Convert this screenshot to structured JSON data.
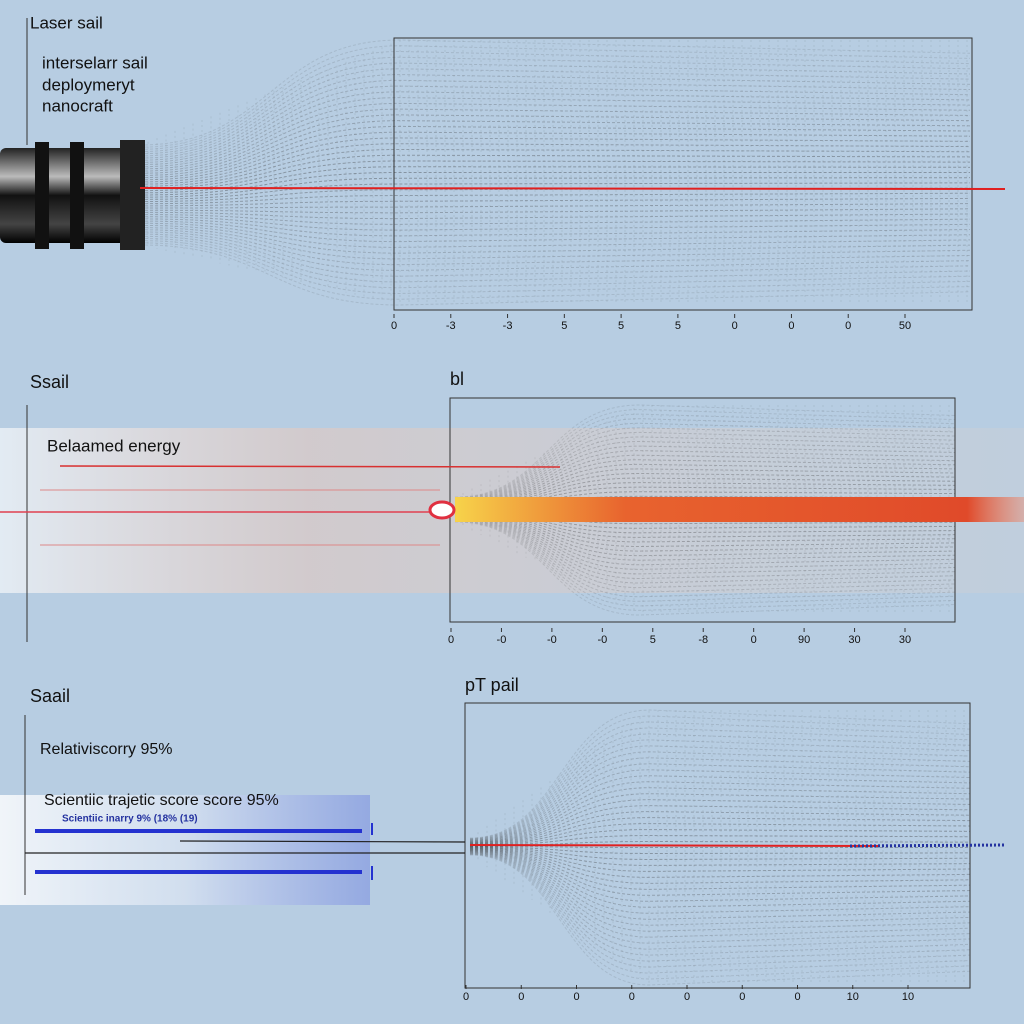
{
  "panels": [
    {
      "title": "Laser sail",
      "notes": [
        "interselarr sail",
        "deploymeryt",
        "nanocraft"
      ],
      "ticks": [
        "0",
        "-3",
        "-3",
        "5",
        "5",
        "5",
        "0",
        "0",
        "0",
        "50"
      ]
    },
    {
      "title": "Ssail",
      "plot_title": "bl",
      "notes": [
        "Belaamed energy"
      ],
      "ticks": [
        "0",
        "-0",
        "-0",
        "-0",
        "5",
        "-8",
        "0",
        "90",
        "30",
        "30"
      ]
    },
    {
      "title": "Saail",
      "plot_title": "pT  pail",
      "notes": [
        "Relativiscorry 95%",
        "Scientiic trajetic score score 95%",
        "Scientiic inarry 9% (18% (19)"
      ],
      "ticks": [
        "0",
        "0",
        "0",
        "0",
        "0",
        "0",
        "0",
        "10",
        "10"
      ]
    }
  ]
}
